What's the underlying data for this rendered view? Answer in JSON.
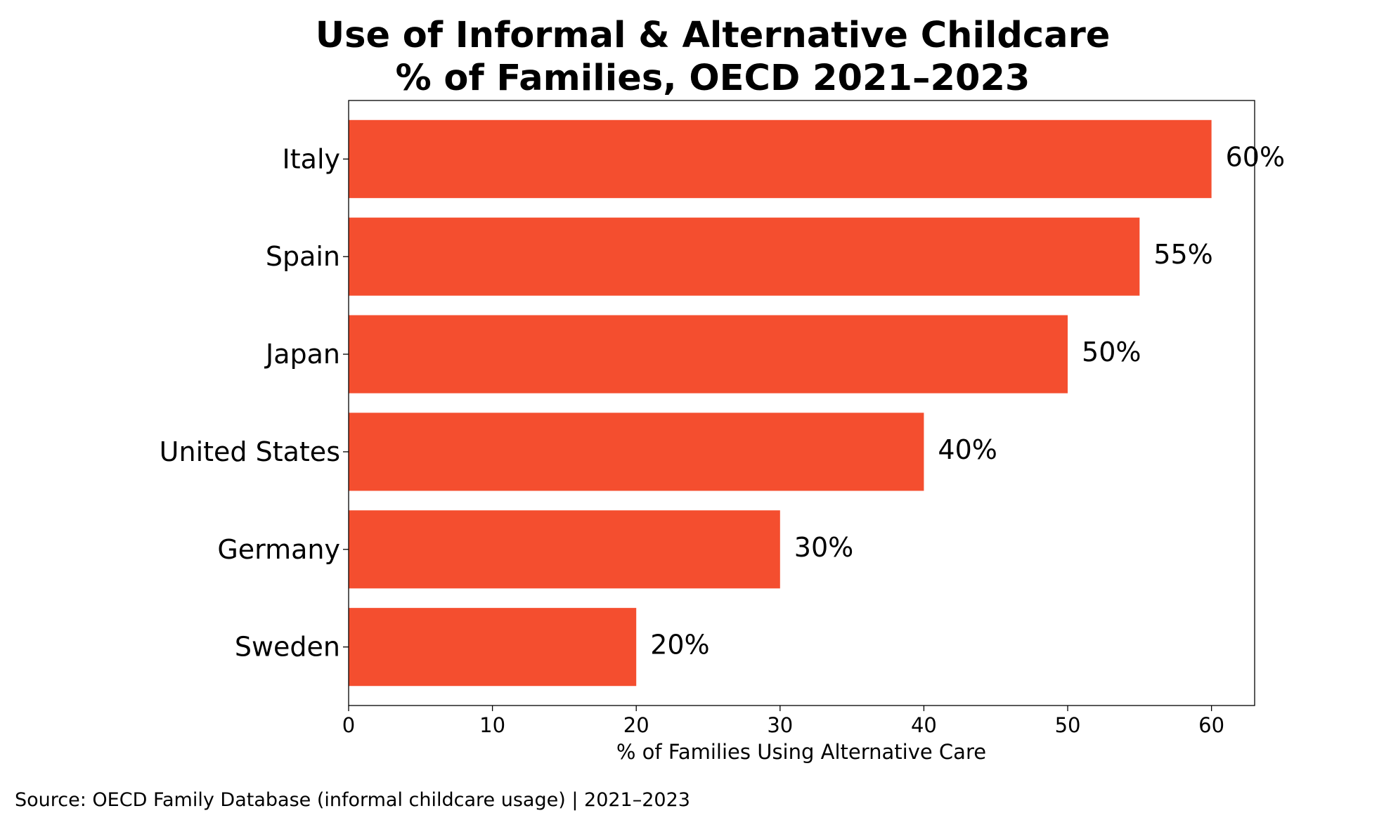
{
  "chart_data": {
    "type": "bar",
    "orientation": "horizontal",
    "title_lines": [
      "Use of Informal & Alternative Childcare",
      "% of Families, OECD 2021–2023"
    ],
    "categories": [
      "Italy",
      "Spain",
      "Japan",
      "United States",
      "Germany",
      "Sweden"
    ],
    "values": [
      60,
      55,
      50,
      40,
      30,
      20
    ],
    "value_labels": [
      "60%",
      "55%",
      "50%",
      "40%",
      "30%",
      "20%"
    ],
    "xlabel": "% of Families Using Alternative Care",
    "ylabel": "",
    "xlim": [
      0,
      63
    ],
    "xticks": [
      0,
      10,
      20,
      30,
      40,
      50,
      60
    ],
    "xtick_labels": [
      "0",
      "10",
      "20",
      "30",
      "40",
      "50",
      "60"
    ],
    "grid": false,
    "bar_color": "#f44e2f"
  },
  "source_note": "Source: OECD Family Database (informal childcare usage) | 2021–2023"
}
